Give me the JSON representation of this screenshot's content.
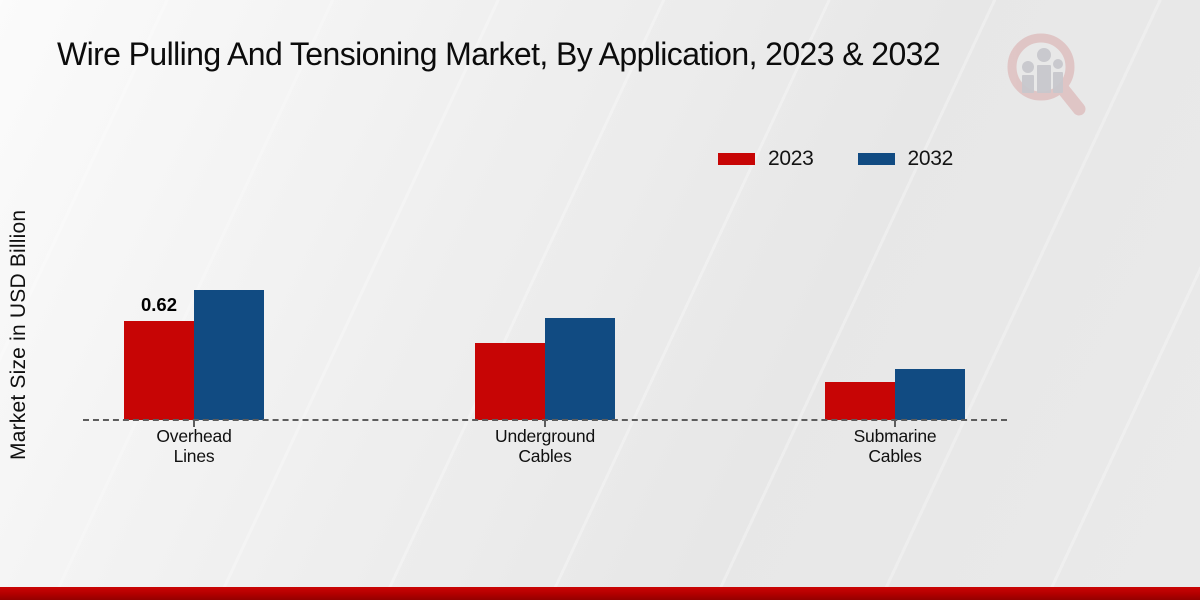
{
  "title": "Wire Pulling And Tensioning Market, By Application, 2023 & 2032",
  "chart_data": {
    "type": "bar",
    "title": "Wire Pulling And Tensioning Market, By Application, 2023 & 2032",
    "xlabel": "",
    "ylabel": "Market Size in USD Billion",
    "categories": [
      "Overhead Lines",
      "Underground Cables",
      "Submarine Cables"
    ],
    "series": [
      {
        "name": "2023",
        "color": "#c70505",
        "values": [
          0.62,
          0.48,
          0.24
        ],
        "value_labels": [
          "0.62",
          "",
          ""
        ]
      },
      {
        "name": "2032",
        "color": "#114b82",
        "values": [
          0.81,
          0.64,
          0.32
        ],
        "value_labels": [
          "",
          "",
          ""
        ]
      }
    ],
    "ylim": [
      0,
      1.0
    ],
    "grid": false,
    "legend_position": "top-right",
    "baseline_style": "dashed"
  },
  "branding": {
    "logo_icon": "magnifier-bar-chart-watermark"
  },
  "accent": {
    "bottom_bar_color": "#b10000"
  }
}
